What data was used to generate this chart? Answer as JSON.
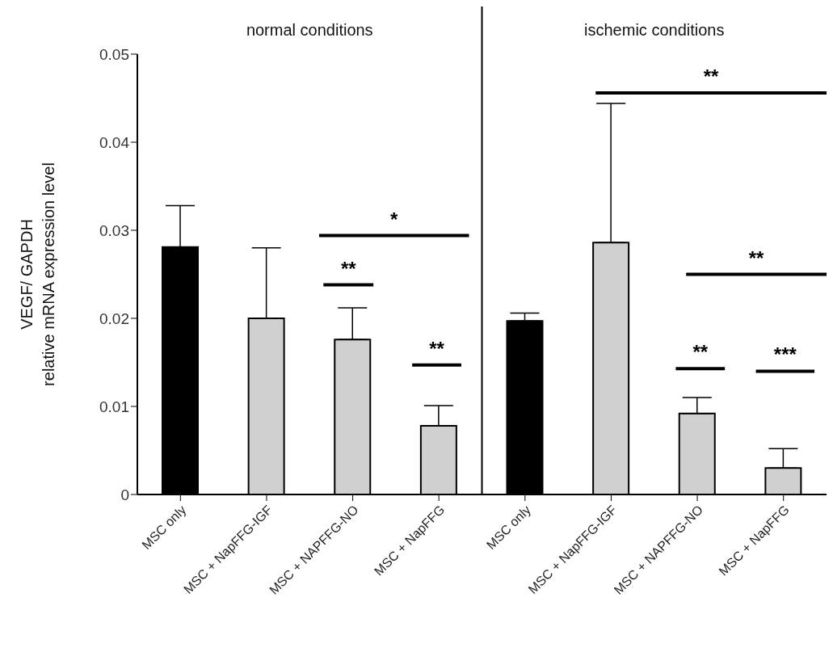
{
  "chart_data": {
    "type": "bar",
    "ylabel": "VEGF/ GAPDH\nrelative mRNA expression level",
    "categories": [
      "MSC only",
      "MSC + NapFFG-IGF",
      "MSC + NAPFFG-NO",
      "MSC + NapFFG",
      "MSC only",
      "MSC + NapFFG-IGF",
      "MSC + NAPFFG-NO",
      "MSC + NapFFG"
    ],
    "values": [
      0.0281,
      0.02,
      0.0176,
      0.0078,
      0.0197,
      0.0286,
      0.0092,
      0.003
    ],
    "colors": [
      "#000000",
      "#d0d0d0",
      "#d0d0d0",
      "#d0d0d0",
      "#000000",
      "#d0d0d0",
      "#d0d0d0",
      "#d0d0d0"
    ],
    "errors": [
      [
        0.0281,
        0.0328
      ],
      [
        0.02,
        0.028
      ],
      [
        0.0176,
        0.0212
      ],
      [
        0.0078,
        0.0101
      ],
      [
        0.0197,
        0.0206
      ],
      [
        0.0286,
        0.0444
      ],
      [
        0.0092,
        0.011
      ],
      [
        0.003,
        0.0052
      ]
    ],
    "ylim": [
      0,
      0.05
    ],
    "yticks": [
      0,
      0.01,
      0.02,
      0.03,
      0.04,
      0.05
    ],
    "grid": false,
    "legend": false,
    "annotations": [
      "normal conditions",
      "ischemic conditions",
      "*",
      "**",
      "**",
      "**",
      "**",
      "**",
      "***"
    ]
  }
}
